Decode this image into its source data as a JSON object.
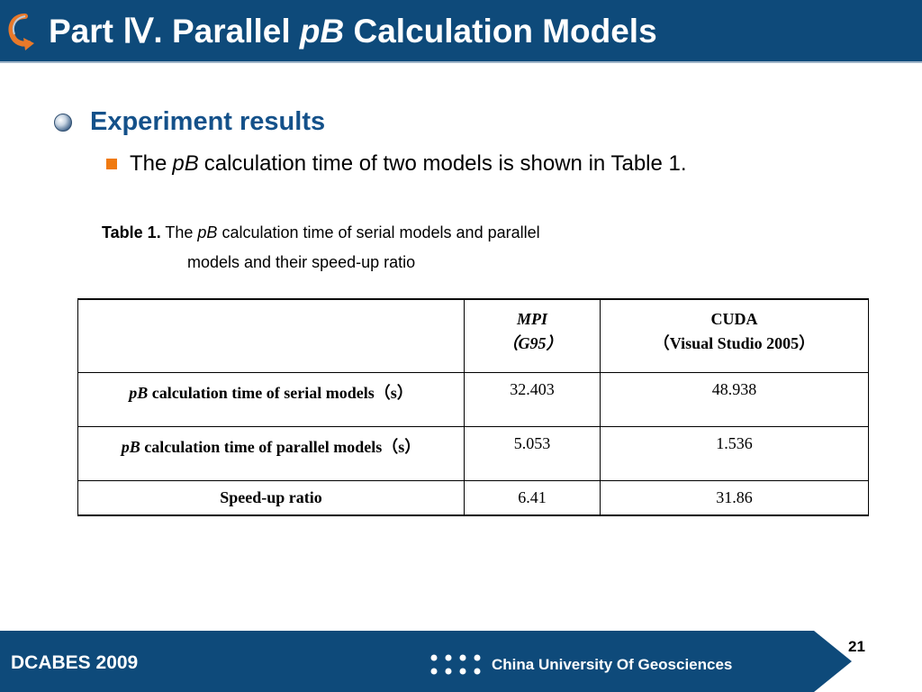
{
  "header": {
    "title_prefix": "Part Ⅳ. Parallel ",
    "title_italic": "pB",
    "title_suffix": " Calculation Models",
    "logo_icon": "curved-arrow-logo-icon"
  },
  "bullets": {
    "heading": "Experiment results",
    "sub_prefix": "The",
    "sub_italic": "pB",
    "sub_suffix": "calculation time of two models is shown in Table 1."
  },
  "caption": {
    "label": "Table 1.",
    "line1_pre": " The ",
    "line1_italic": "pB",
    "line1_post": " calculation time of serial models and parallel",
    "line2": "models and their speed-up ratio"
  },
  "table": {
    "col_mpi_line1": "MPI",
    "col_mpi_line2": "（G95）",
    "col_cuda_line1": "CUDA",
    "col_cuda_line2": "（Visual Studio 2005）",
    "rows": [
      {
        "label_italic": "pB",
        "label_rest": " calculation time of serial models（s）",
        "mpi": "32.403",
        "cuda": "48.938"
      },
      {
        "label_italic": "pB",
        "label_rest": " calculation time of parallel models（s）",
        "mpi": "5.053",
        "cuda": "1.536"
      },
      {
        "label_italic": "",
        "label_rest": "Speed-up ratio",
        "mpi": "6.41",
        "cuda": "31.86"
      }
    ]
  },
  "footer": {
    "left": "DCABES 2009",
    "right": "China University Of Geosciences",
    "page_number": "21"
  },
  "colors": {
    "header_bg": "#0e4a7a",
    "heading_text": "#14518a",
    "square_bullet": "#f07a10"
  }
}
